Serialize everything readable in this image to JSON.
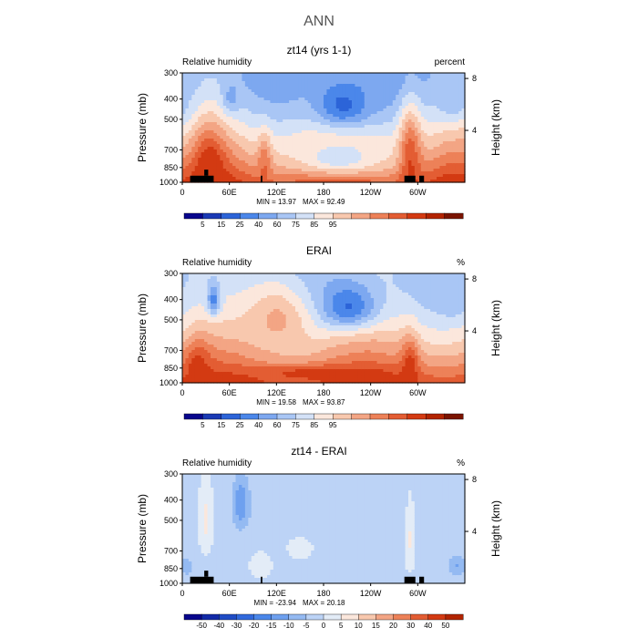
{
  "figure": {
    "title": "ANN"
  },
  "colors": {
    "land": "#000000",
    "frame": "#000000"
  },
  "chart_data": [
    {
      "type": "heatmap",
      "title": "zt14 (yrs 1-1)",
      "left_label": "Relative humidity",
      "right_label": "percent",
      "ylabel": "Pressure (mb)",
      "right_axis_label": "Height (km)",
      "x_ticks": [
        "0",
        "60E",
        "120E",
        "180",
        "120W",
        "60W"
      ],
      "x_tick_values": [
        0,
        60,
        120,
        180,
        240,
        300
      ],
      "xlim": [
        0,
        360
      ],
      "y_ticks": [
        "300",
        "400",
        "500",
        "700",
        "850",
        "1000"
      ],
      "y_tick_values": [
        300,
        400,
        500,
        700,
        850,
        1000
      ],
      "ylim": [
        300,
        1000
      ],
      "height_ticks": [
        "8",
        "4"
      ],
      "height_tick_values": [
        8,
        4
      ],
      "min_text": "MIN =   13.97",
      "max_text": "MAX =   92.49",
      "colorbar": {
        "labels": [
          "5",
          "15",
          "25",
          "40",
          "60",
          "75",
          "85",
          "95"
        ],
        "colors": [
          "#08068c",
          "#1a3ab5",
          "#2c64d8",
          "#4b87ea",
          "#7da8f0",
          "#a9c6f5",
          "#d3e1f7",
          "#fbe7dc",
          "#f8c8ae",
          "#f3a584",
          "#ed8158",
          "#e35d33",
          "#d33a12",
          "#b22400",
          "#7a1400"
        ]
      },
      "features": [
        {
          "x": 62,
          "p": 390,
          "value": 30,
          "sx": 8,
          "sp": 50
        },
        {
          "x": 205,
          "p": 430,
          "value": 16,
          "sx": 28,
          "sp": 90
        },
        {
          "x": 345,
          "p": 400,
          "value": 33,
          "sx": 14,
          "sp": 70
        },
        {
          "x": 0,
          "p": 420,
          "value": 38,
          "sx": 10,
          "sp": 60
        },
        {
          "x": 35,
          "p": 850,
          "value": 88,
          "sx": 14,
          "sp": 200
        },
        {
          "x": 290,
          "p": 800,
          "value": 87,
          "sx": 10,
          "sp": 230
        },
        {
          "x": 105,
          "p": 830,
          "value": 78,
          "sx": 6,
          "sp": 150
        },
        {
          "x": 200,
          "p": 760,
          "value": 42,
          "sx": 45,
          "sp": 130
        }
      ],
      "land": [
        {
          "x0": 10,
          "x1": 40,
          "p0": 930,
          "p1": 1000
        },
        {
          "x0": 28,
          "x1": 33,
          "p0": 870,
          "p1": 930
        },
        {
          "x0": 100,
          "x1": 102,
          "p0": 930,
          "p1": 1000
        },
        {
          "x0": 283,
          "x1": 297,
          "p0": 930,
          "p1": 1000
        },
        {
          "x0": 302,
          "x1": 308,
          "p0": 930,
          "p1": 1000
        }
      ]
    },
    {
      "type": "heatmap",
      "title": "ERAI",
      "left_label": "Relative humidity",
      "right_label": "%",
      "ylabel": "Pressure (mb)",
      "right_axis_label": "Height (km)",
      "x_ticks": [
        "0",
        "60E",
        "120E",
        "180",
        "120W",
        "60W"
      ],
      "x_tick_values": [
        0,
        60,
        120,
        180,
        240,
        300
      ],
      "xlim": [
        0,
        360
      ],
      "y_ticks": [
        "300",
        "400",
        "500",
        "700",
        "850",
        "1000"
      ],
      "y_tick_values": [
        300,
        400,
        500,
        700,
        850,
        1000
      ],
      "ylim": [
        300,
        1000
      ],
      "height_ticks": [
        "8",
        "4"
      ],
      "height_tick_values": [
        8,
        4
      ],
      "min_text": "MIN =   19.58",
      "max_text": "MAX =   93.87",
      "colorbar": {
        "labels": [
          "5",
          "15",
          "25",
          "40",
          "60",
          "75",
          "85",
          "95"
        ],
        "colors": [
          "#08068c",
          "#1a3ab5",
          "#2c64d8",
          "#4b87ea",
          "#7da8f0",
          "#a9c6f5",
          "#d3e1f7",
          "#fbe7dc",
          "#f8c8ae",
          "#f3a584",
          "#ed8158",
          "#e35d33",
          "#d33a12",
          "#b22400",
          "#7a1400"
        ]
      },
      "features": [
        {
          "x": 40,
          "p": 400,
          "value": 22,
          "sx": 6,
          "sp": 50
        },
        {
          "x": 210,
          "p": 430,
          "value": 18,
          "sx": 28,
          "sp": 80
        },
        {
          "x": 345,
          "p": 400,
          "value": 36,
          "sx": 12,
          "sp": 60
        },
        {
          "x": 20,
          "p": 850,
          "value": 85,
          "sx": 12,
          "sp": 150
        },
        {
          "x": 290,
          "p": 850,
          "value": 86,
          "sx": 8,
          "sp": 160
        },
        {
          "x": 180,
          "p": 900,
          "value": 86,
          "sx": 60,
          "sp": 50
        },
        {
          "x": 120,
          "p": 500,
          "value": 62,
          "sx": 30,
          "sp": 130
        }
      ],
      "land": []
    },
    {
      "type": "heatmap",
      "title": "zt14 - ERAI",
      "left_label": "Relative humidity",
      "right_label": "%",
      "ylabel": "Pressure (mb)",
      "right_axis_label": "Height (km)",
      "x_ticks": [
        "0",
        "60E",
        "120E",
        "180",
        "120W",
        "60W"
      ],
      "x_tick_values": [
        0,
        60,
        120,
        180,
        240,
        300
      ],
      "xlim": [
        0,
        360
      ],
      "y_ticks": [
        "300",
        "400",
        "500",
        "700",
        "850",
        "1000"
      ],
      "y_tick_values": [
        300,
        400,
        500,
        700,
        850,
        1000
      ],
      "ylim": [
        300,
        1000
      ],
      "height_ticks": [
        "8",
        "4"
      ],
      "height_tick_values": [
        8,
        4
      ],
      "min_text": "MIN =  -23.94",
      "max_text": "MAX =   20.18",
      "colorbar": {
        "labels": [
          "-50",
          "-40",
          "-30",
          "-20",
          "-15",
          "-10",
          "-5",
          "0",
          "5",
          "10",
          "15",
          "20",
          "30",
          "40",
          "50"
        ],
        "colors": [
          "#08068c",
          "#122aa8",
          "#1f4cc5",
          "#3169dc",
          "#4b87ea",
          "#6ea0ef",
          "#94baf2",
          "#bcd3f6",
          "#e3ecf7",
          "#fbe7dc",
          "#f8c8ae",
          "#f3a584",
          "#ed8158",
          "#e35d33",
          "#d33a12",
          "#b22400"
        ]
      },
      "features": [
        {
          "x": 75,
          "p": 420,
          "value": -22,
          "sx": 7,
          "sp": 80
        },
        {
          "x": 30,
          "p": 500,
          "value": 9,
          "sx": 6,
          "sp": 150
        },
        {
          "x": 290,
          "p": 600,
          "value": 8,
          "sx": 5,
          "sp": 180
        },
        {
          "x": 350,
          "p": 820,
          "value": -15,
          "sx": 8,
          "sp": 60
        },
        {
          "x": 5,
          "p": 830,
          "value": -12,
          "sx": 6,
          "sp": 60
        },
        {
          "x": 150,
          "p": 680,
          "value": 5,
          "sx": 12,
          "sp": 60
        },
        {
          "x": 200,
          "p": 400,
          "value": -7,
          "sx": 50,
          "sp": 100
        },
        {
          "x": 100,
          "p": 820,
          "value": 6,
          "sx": 10,
          "sp": 80
        }
      ],
      "land": [
        {
          "x0": 10,
          "x1": 40,
          "p0": 930,
          "p1": 1000
        },
        {
          "x0": 28,
          "x1": 33,
          "p0": 870,
          "p1": 930
        },
        {
          "x0": 100,
          "x1": 102,
          "p0": 930,
          "p1": 1000
        },
        {
          "x0": 283,
          "x1": 297,
          "p0": 930,
          "p1": 1000
        },
        {
          "x0": 302,
          "x1": 308,
          "p0": 930,
          "p1": 1000
        }
      ]
    }
  ]
}
